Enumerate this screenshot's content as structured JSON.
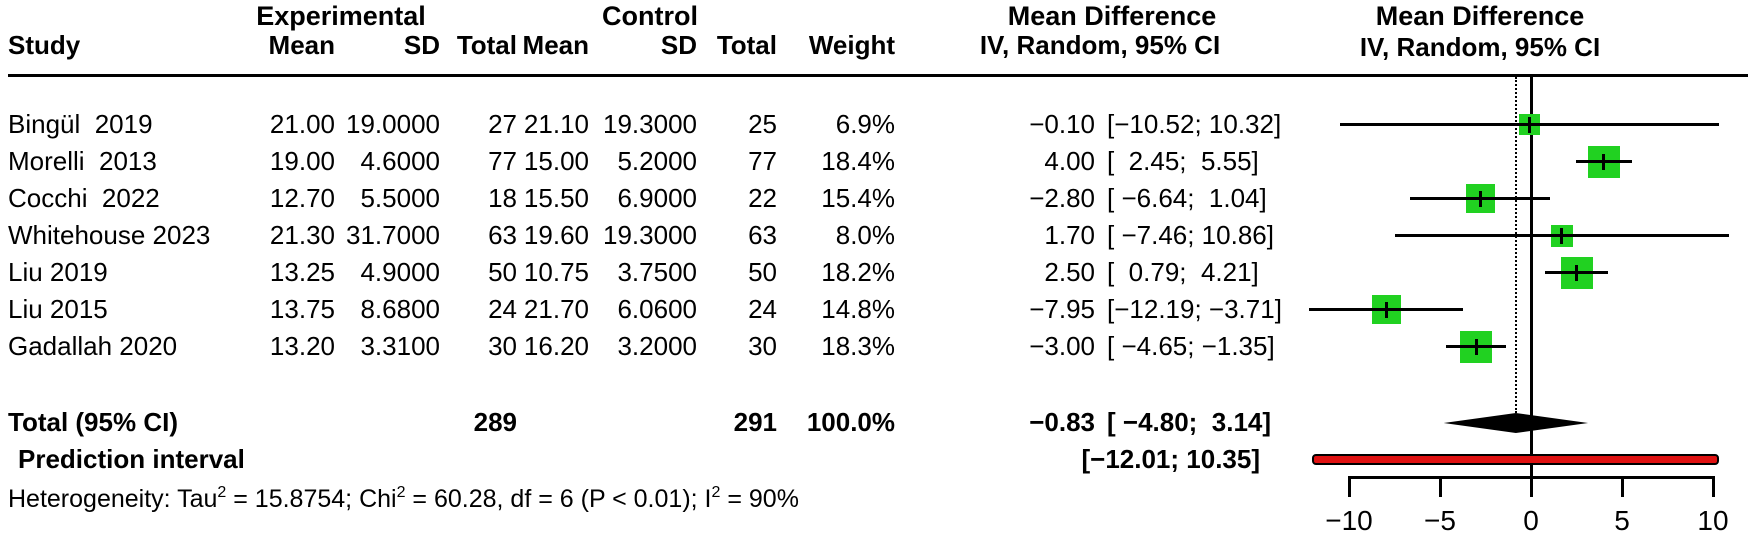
{
  "table": {
    "group_headers": {
      "experimental": "Experimental",
      "control": "Control",
      "md_table": "Mean Difference",
      "md_plot": "Mean Difference"
    },
    "column_headers": {
      "study": "Study",
      "mean_exp": "Mean",
      "sd_exp": "SD",
      "total_exp": "Total",
      "mean_ctrl": "Mean",
      "sd_ctrl": "SD",
      "total_ctrl": "Total",
      "weight": "Weight",
      "iv_table": "IV, Random, 95% CI",
      "iv_plot": "IV, Random, 95% CI"
    },
    "rows": [
      {
        "study": "Bingül  2019",
        "mean_exp": "21.00",
        "sd_exp": "19.0000",
        "total_exp": "27",
        "mean_ctrl": "21.10",
        "sd_ctrl": "19.3000",
        "total_ctrl": "25",
        "weight": "6.9%",
        "md": "−0.10",
        "ci": "[−10.52; 10.32]"
      },
      {
        "study": "Morelli  2013",
        "mean_exp": "19.00",
        "sd_exp": "4.6000",
        "total_exp": "77",
        "mean_ctrl": "15.00",
        "sd_ctrl": "5.2000",
        "total_ctrl": "77",
        "weight": "18.4%",
        "md": "4.00",
        "ci": "[  2.45;  5.55]"
      },
      {
        "study": "Cocchi  2022",
        "mean_exp": "12.70",
        "sd_exp": "5.5000",
        "total_exp": "18",
        "mean_ctrl": "15.50",
        "sd_ctrl": "6.9000",
        "total_ctrl": "22",
        "weight": "15.4%",
        "md": "−2.80",
        "ci": "[ −6.64;  1.04]"
      },
      {
        "study": "Whitehouse 2023",
        "mean_exp": "21.30",
        "sd_exp": "31.7000",
        "total_exp": "63",
        "mean_ctrl": "19.60",
        "sd_ctrl": "19.3000",
        "total_ctrl": "63",
        "weight": "8.0%",
        "md": "1.70",
        "ci": "[ −7.46; 10.86]"
      },
      {
        "study": "Liu 2019",
        "mean_exp": "13.25",
        "sd_exp": "4.9000",
        "total_exp": "50",
        "mean_ctrl": "10.75",
        "sd_ctrl": "3.7500",
        "total_ctrl": "50",
        "weight": "18.2%",
        "md": "2.50",
        "ci": "[  0.79;  4.21]"
      },
      {
        "study": "Liu 2015",
        "mean_exp": "13.75",
        "sd_exp": "8.6800",
        "total_exp": "24",
        "mean_ctrl": "21.70",
        "sd_ctrl": "6.0600",
        "total_ctrl": "24",
        "weight": "14.8%",
        "md": "−7.95",
        "ci": "[−12.19; −3.71]"
      },
      {
        "study": "Gadallah 2020",
        "mean_exp": "13.20",
        "sd_exp": "3.3100",
        "total_exp": "30",
        "mean_ctrl": "16.20",
        "sd_ctrl": "3.2000",
        "total_ctrl": "30",
        "weight": "18.3%",
        "md": "−3.00",
        "ci": "[ −4.65; −1.35]"
      }
    ],
    "total_row": {
      "label": "Total (95% CI)",
      "total_exp": "289",
      "total_ctrl": "291",
      "weight": "100.0%",
      "md": "−0.83",
      "ci": "[ −4.80;  3.14]"
    },
    "prediction_row": {
      "label": "Prediction interval",
      "ci": "[−12.01; 10.35]"
    },
    "heterogeneity": {
      "part1": "Heterogeneity: Tau",
      "sup1": "2",
      "part2": " = 15.8754; Chi",
      "sup2": "2",
      "part3": " = 60.28, df = 6 (P < 0.01); I",
      "sup3": "2",
      "part4": " = 90%"
    }
  },
  "chart_data": {
    "type": "forest",
    "title": "Mean Difference IV, Random, 95% CI",
    "x_axis": {
      "xlim": [
        -10,
        10
      ],
      "ticks": [
        -10,
        -5,
        0,
        5,
        10
      ],
      "tick_labels": [
        "−10",
        "−5",
        "0",
        "5",
        "10"
      ]
    },
    "reference_line": 0,
    "pooled_effect_line": -0.83,
    "studies": [
      {
        "study": "Bingül 2019",
        "md": -0.1,
        "ci_low": -10.52,
        "ci_high": 10.32,
        "weight_pct": 6.9
      },
      {
        "study": "Morelli 2013",
        "md": 4.0,
        "ci_low": 2.45,
        "ci_high": 5.55,
        "weight_pct": 18.4
      },
      {
        "study": "Cocchi 2022",
        "md": -2.8,
        "ci_low": -6.64,
        "ci_high": 1.04,
        "weight_pct": 15.4
      },
      {
        "study": "Whitehouse 2023",
        "md": 1.7,
        "ci_low": -7.46,
        "ci_high": 10.86,
        "weight_pct": 8.0
      },
      {
        "study": "Liu 2019",
        "md": 2.5,
        "ci_low": 0.79,
        "ci_high": 4.21,
        "weight_pct": 18.2
      },
      {
        "study": "Liu 2015",
        "md": -7.95,
        "ci_low": -12.19,
        "ci_high": -3.71,
        "weight_pct": 14.8
      },
      {
        "study": "Gadallah 2020",
        "md": -3.0,
        "ci_low": -4.65,
        "ci_high": -1.35,
        "weight_pct": 18.3
      }
    ],
    "total": {
      "md": -0.83,
      "ci_low": -4.8,
      "ci_high": 3.14
    },
    "prediction_interval": {
      "ci_low": -12.01,
      "ci_high": 10.35
    },
    "colors": {
      "square": "#21d121",
      "prediction_bar": "#e01212",
      "line": "#000000"
    }
  }
}
